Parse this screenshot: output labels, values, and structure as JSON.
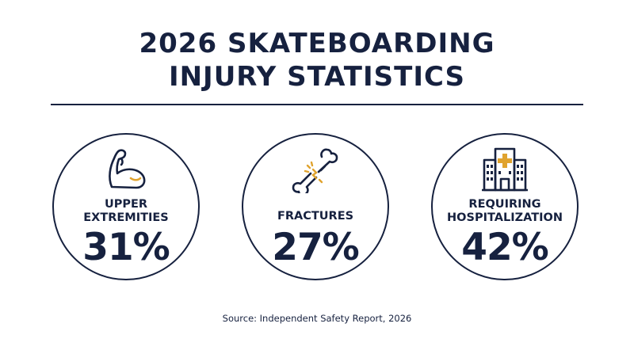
{
  "title": {
    "line1": "2026 SKATEBOARDING",
    "line2": "INJURY STATISTICS"
  },
  "stats": [
    {
      "label_lines": [
        "UPPER",
        "EXTREMITIES"
      ],
      "value": "31%",
      "icon": "flexed-arm-icon"
    },
    {
      "label_lines": [
        "FRACTURES"
      ],
      "value": "27%",
      "icon": "broken-bone-icon"
    },
    {
      "label_lines": [
        "REQUIRING",
        "HOSPITALIZATION"
      ],
      "value": "42%",
      "icon": "hospital-building-icon"
    }
  ],
  "source": "Source: Independent Safety Report, 2026",
  "colors": {
    "navy": "#16213f",
    "accent_gold": "#e0a32e",
    "background": "#ffffff"
  }
}
